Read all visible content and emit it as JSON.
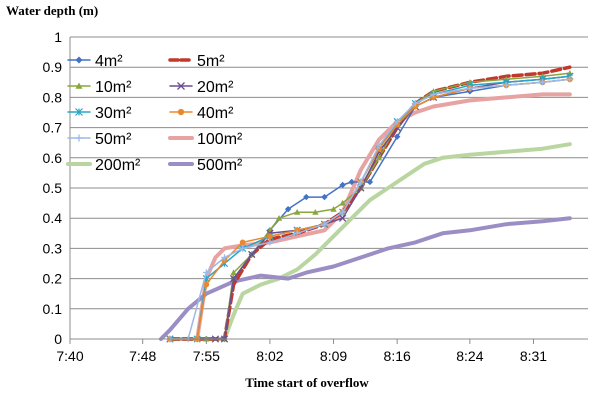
{
  "chart_data": {
    "type": "line",
    "title": "",
    "ylabel": "Water depth (m)",
    "xlabel": "Time start of overflow",
    "ylim": [
      0,
      1
    ],
    "yticks": [
      "0",
      "0.1",
      "0.2",
      "0.3",
      "0.4",
      "0.5",
      "0.6",
      "0.7",
      "0.8",
      "0.9",
      "1"
    ],
    "xlim": [
      "7:40",
      "8:37"
    ],
    "xticks": [
      "7:40",
      "7:48",
      "7:55",
      "8:02",
      "8:09",
      "8:16",
      "8:24",
      "8:31"
    ],
    "grid": "horizontal",
    "legend": "top-left",
    "series": [
      {
        "name": "4m²",
        "color": "#4472c4",
        "marker": "diamond",
        "width": 1.5,
        "x": [
          "7:51",
          "7:55",
          "7:57",
          "7:58",
          "8:00",
          "8:02",
          "8:04",
          "8:06",
          "8:08",
          "8:10",
          "8:11",
          "8:12",
          "8:13",
          "8:16",
          "8:18",
          "8:20",
          "8:24",
          "8:28",
          "8:32",
          "8:35"
        ],
        "y": [
          0,
          0,
          0,
          0.2,
          0.28,
          0.36,
          0.43,
          0.47,
          0.47,
          0.51,
          0.52,
          0.52,
          0.52,
          0.67,
          0.77,
          0.8,
          0.82,
          0.84,
          0.85,
          0.86
        ]
      },
      {
        "name": "5m²",
        "color": "#c0392b",
        "marker": "none",
        "dash": "9,4",
        "width": 3.5,
        "x": [
          "7:51",
          "7:56",
          "7:57",
          "7:58",
          "8:00",
          "8:02",
          "8:05",
          "8:08",
          "8:10",
          "8:12",
          "8:14",
          "8:16",
          "8:18",
          "8:20",
          "8:24",
          "8:28",
          "8:32",
          "8:35"
        ],
        "y": [
          0,
          0,
          0,
          0.18,
          0.28,
          0.33,
          0.35,
          0.38,
          0.42,
          0.5,
          0.6,
          0.7,
          0.78,
          0.82,
          0.85,
          0.87,
          0.88,
          0.9
        ]
      },
      {
        "name": "10m²",
        "color": "#8aa63d",
        "marker": "triangle",
        "width": 1.5,
        "x": [
          "7:51",
          "7:55",
          "7:57",
          "7:58",
          "8:00",
          "8:02",
          "8:03",
          "8:05",
          "8:07",
          "8:09",
          "8:10",
          "8:12",
          "8:14",
          "8:16",
          "8:18",
          "8:20",
          "8:24",
          "8:28",
          "8:32",
          "8:35"
        ],
        "y": [
          0,
          0,
          0,
          0.22,
          0.28,
          0.36,
          0.4,
          0.42,
          0.42,
          0.43,
          0.45,
          0.5,
          0.6,
          0.71,
          0.78,
          0.82,
          0.85,
          0.86,
          0.87,
          0.88
        ]
      },
      {
        "name": "20m²",
        "color": "#6b4e8f",
        "marker": "x",
        "width": 1.5,
        "x": [
          "7:51",
          "7:56",
          "7:57",
          "7:58",
          "8:00",
          "8:02",
          "8:05",
          "8:08",
          "8:10",
          "8:12",
          "8:14",
          "8:16",
          "8:18",
          "8:20",
          "8:24",
          "8:28",
          "8:32",
          "8:35"
        ],
        "y": [
          0,
          0,
          0,
          0.2,
          0.28,
          0.35,
          0.36,
          0.38,
          0.4,
          0.5,
          0.62,
          0.7,
          0.77,
          0.8,
          0.83,
          0.85,
          0.86,
          0.87
        ]
      },
      {
        "name": "30m²",
        "color": "#2aa5c6",
        "marker": "asterisk",
        "width": 1.5,
        "x": [
          "7:51",
          "7:54",
          "7:55",
          "7:57",
          "7:59",
          "8:02",
          "8:05",
          "8:08",
          "8:10",
          "8:12",
          "8:14",
          "8:16",
          "8:18",
          "8:20",
          "8:24",
          "8:28",
          "8:32",
          "8:35"
        ],
        "y": [
          0,
          0,
          0.2,
          0.25,
          0.3,
          0.34,
          0.36,
          0.38,
          0.42,
          0.52,
          0.63,
          0.72,
          0.78,
          0.81,
          0.84,
          0.85,
          0.86,
          0.87
        ]
      },
      {
        "name": "40m²",
        "color": "#e8892d",
        "marker": "circle",
        "width": 1.5,
        "x": [
          "7:51",
          "7:54",
          "7:55",
          "7:57",
          "7:59",
          "8:02",
          "8:05",
          "8:08",
          "8:10",
          "8:12",
          "8:14",
          "8:16",
          "8:18",
          "8:20",
          "8:24",
          "8:28",
          "8:32",
          "8:35"
        ],
        "y": [
          0,
          0,
          0.18,
          0.26,
          0.32,
          0.34,
          0.36,
          0.38,
          0.42,
          0.52,
          0.63,
          0.71,
          0.77,
          0.8,
          0.83,
          0.84,
          0.85,
          0.86
        ]
      },
      {
        "name": "50m²",
        "color": "#9db9e6",
        "marker": "plus",
        "width": 1.5,
        "x": [
          "7:51",
          "7:53",
          "7:55",
          "7:57",
          "7:59",
          "8:02",
          "8:05",
          "8:08",
          "8:10",
          "8:12",
          "8:14",
          "8:16",
          "8:18",
          "8:20",
          "8:24",
          "8:28",
          "8:32",
          "8:35"
        ],
        "y": [
          0,
          0,
          0.22,
          0.27,
          0.3,
          0.32,
          0.35,
          0.38,
          0.42,
          0.52,
          0.64,
          0.72,
          0.78,
          0.81,
          0.83,
          0.84,
          0.85,
          0.86
        ]
      },
      {
        "name": "100m²",
        "color": "#e6a3a1",
        "marker": "none",
        "width": 4,
        "x": [
          "7:51",
          "7:54",
          "7:55",
          "7:56",
          "7:57",
          "7:59",
          "8:02",
          "8:05",
          "8:08",
          "8:10",
          "8:12",
          "8:14",
          "8:16",
          "8:18",
          "8:20",
          "8:24",
          "8:28",
          "8:32",
          "8:35"
        ],
        "y": [
          0,
          0,
          0.2,
          0.27,
          0.3,
          0.31,
          0.32,
          0.34,
          0.36,
          0.42,
          0.56,
          0.66,
          0.72,
          0.75,
          0.77,
          0.79,
          0.8,
          0.81,
          0.81
        ]
      },
      {
        "name": "200m²",
        "color": "#b9d6a0",
        "marker": "none",
        "width": 4,
        "x": [
          "7:51",
          "7:57",
          "7:58",
          "7:59",
          "8:01",
          "8:03",
          "8:05",
          "8:07",
          "8:09",
          "8:11",
          "8:13",
          "8:15",
          "8:17",
          "8:19",
          "8:21",
          "8:24",
          "8:28",
          "8:32",
          "8:35"
        ],
        "y": [
          0,
          0,
          0.08,
          0.15,
          0.18,
          0.2,
          0.23,
          0.28,
          0.34,
          0.4,
          0.46,
          0.5,
          0.54,
          0.58,
          0.6,
          0.61,
          0.62,
          0.63,
          0.645
        ]
      },
      {
        "name": "500m²",
        "color": "#9b8ec4",
        "marker": "none",
        "width": 4,
        "x": [
          "7:50",
          "7:51",
          "7:53",
          "7:55",
          "7:58",
          "8:01",
          "8:04",
          "8:06",
          "8:09",
          "8:12",
          "8:15",
          "8:18",
          "8:21",
          "8:24",
          "8:28",
          "8:32",
          "8:35"
        ],
        "y": [
          0,
          0.03,
          0.1,
          0.15,
          0.19,
          0.21,
          0.2,
          0.22,
          0.24,
          0.27,
          0.3,
          0.32,
          0.35,
          0.36,
          0.38,
          0.39,
          0.4
        ]
      }
    ]
  }
}
